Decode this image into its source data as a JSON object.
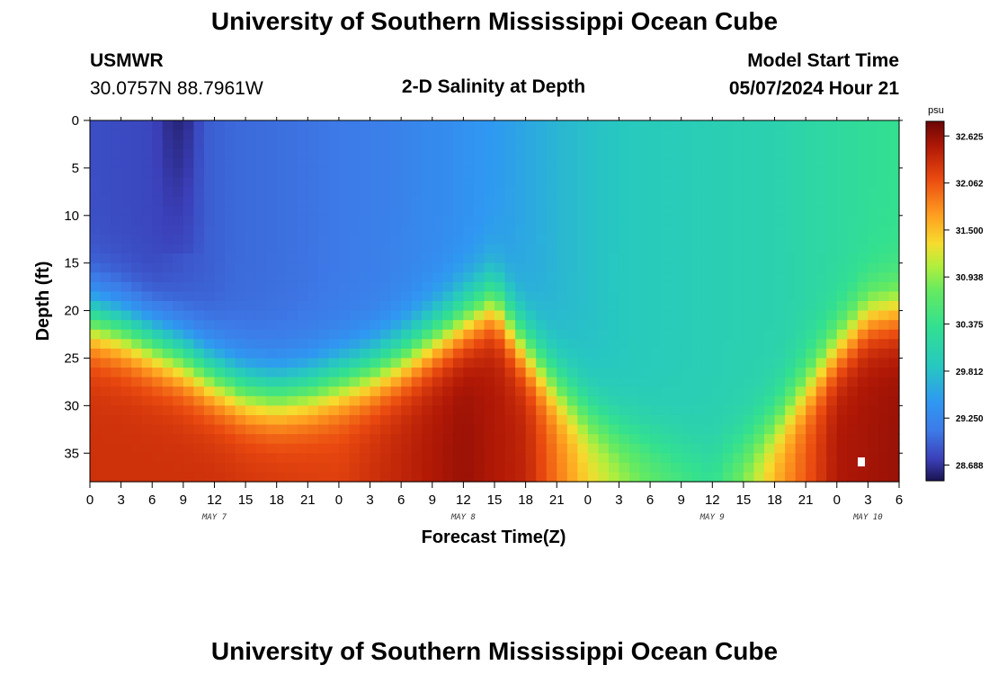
{
  "header": {
    "title": "University of Southern Mississippi Ocean Cube",
    "station": "USMWR",
    "coords": "30.0757N  88.7961W",
    "plot_title": "2-D Salinity at Depth",
    "model_label": "Model Start Time",
    "model_time": "05/07/2024 Hour 21"
  },
  "footer": {
    "title": "University of Southern Mississippi Ocean Cube"
  },
  "chart_data": {
    "type": "heatmap",
    "title": "2-D Salinity at Depth",
    "xlabel": "Forecast Time(Z)",
    "ylabel": "Depth (ft)",
    "units": "psu",
    "x_hours_range": [
      0,
      78
    ],
    "x_tick_labels": [
      "0",
      "3",
      "6",
      "9",
      "12",
      "15",
      "18",
      "21",
      "0",
      "3",
      "6",
      "9",
      "12",
      "15",
      "18",
      "21",
      "0",
      "3",
      "6",
      "9",
      "12",
      "15",
      "18",
      "21",
      "0",
      "3",
      "6"
    ],
    "date_labels": [
      {
        "label": "MAY 7",
        "hour": 12
      },
      {
        "label": "MAY 8",
        "hour": 36
      },
      {
        "label": "MAY 9",
        "hour": 60
      },
      {
        "label": "MAY 10",
        "hour": 75
      }
    ],
    "ylim": [
      0,
      38
    ],
    "y_ticks": [
      0,
      5,
      10,
      15,
      20,
      25,
      30,
      35
    ],
    "colorbar_ticks": [
      "32.625",
      "32.062",
      "31.500",
      "30.938",
      "30.375",
      "29.812",
      "29.250",
      "28.688"
    ],
    "color_range": [
      28.5,
      32.8
    ],
    "halocline_depth_by_hour": [
      [
        0,
        21
      ],
      [
        3,
        22
      ],
      [
        6,
        23.5
      ],
      [
        9,
        25
      ],
      [
        12,
        27
      ],
      [
        15,
        28.5
      ],
      [
        18,
        29
      ],
      [
        21,
        28.5
      ],
      [
        24,
        27.5
      ],
      [
        27,
        26.5
      ],
      [
        30,
        25
      ],
      [
        33,
        23
      ],
      [
        36,
        21
      ],
      [
        39,
        19
      ],
      [
        42,
        24
      ],
      [
        45,
        28
      ],
      [
        48,
        31
      ],
      [
        51,
        33
      ],
      [
        54,
        34
      ],
      [
        57,
        35
      ],
      [
        60,
        35.5
      ],
      [
        63,
        34.5
      ],
      [
        66,
        32
      ],
      [
        69,
        28
      ],
      [
        72,
        24
      ],
      [
        75,
        20.5
      ],
      [
        78,
        20
      ]
    ],
    "surface_salinity_by_hour": [
      [
        0,
        28.85
      ],
      [
        6,
        28.8
      ],
      [
        10,
        28.9
      ],
      [
        14,
        29.0
      ],
      [
        20,
        29.05
      ],
      [
        28,
        29.15
      ],
      [
        34,
        29.3
      ],
      [
        40,
        29.5
      ],
      [
        46,
        29.75
      ],
      [
        52,
        29.9
      ],
      [
        60,
        30.0
      ],
      [
        66,
        30.05
      ],
      [
        72,
        30.2
      ],
      [
        78,
        30.35
      ]
    ],
    "bottom_salinity_by_hour": [
      [
        0,
        32.3
      ],
      [
        12,
        32.3
      ],
      [
        24,
        32.2
      ],
      [
        36,
        32.6
      ],
      [
        42,
        32.4
      ],
      [
        48,
        31.4
      ],
      [
        54,
        30.8
      ],
      [
        60,
        30.4
      ],
      [
        66,
        31.6
      ],
      [
        72,
        32.5
      ],
      [
        78,
        32.6
      ]
    ],
    "low_salinity_patch": {
      "hours": [
        6,
        11
      ],
      "depth_ft": [
        0,
        14
      ],
      "min_psu": 28.6
    }
  }
}
